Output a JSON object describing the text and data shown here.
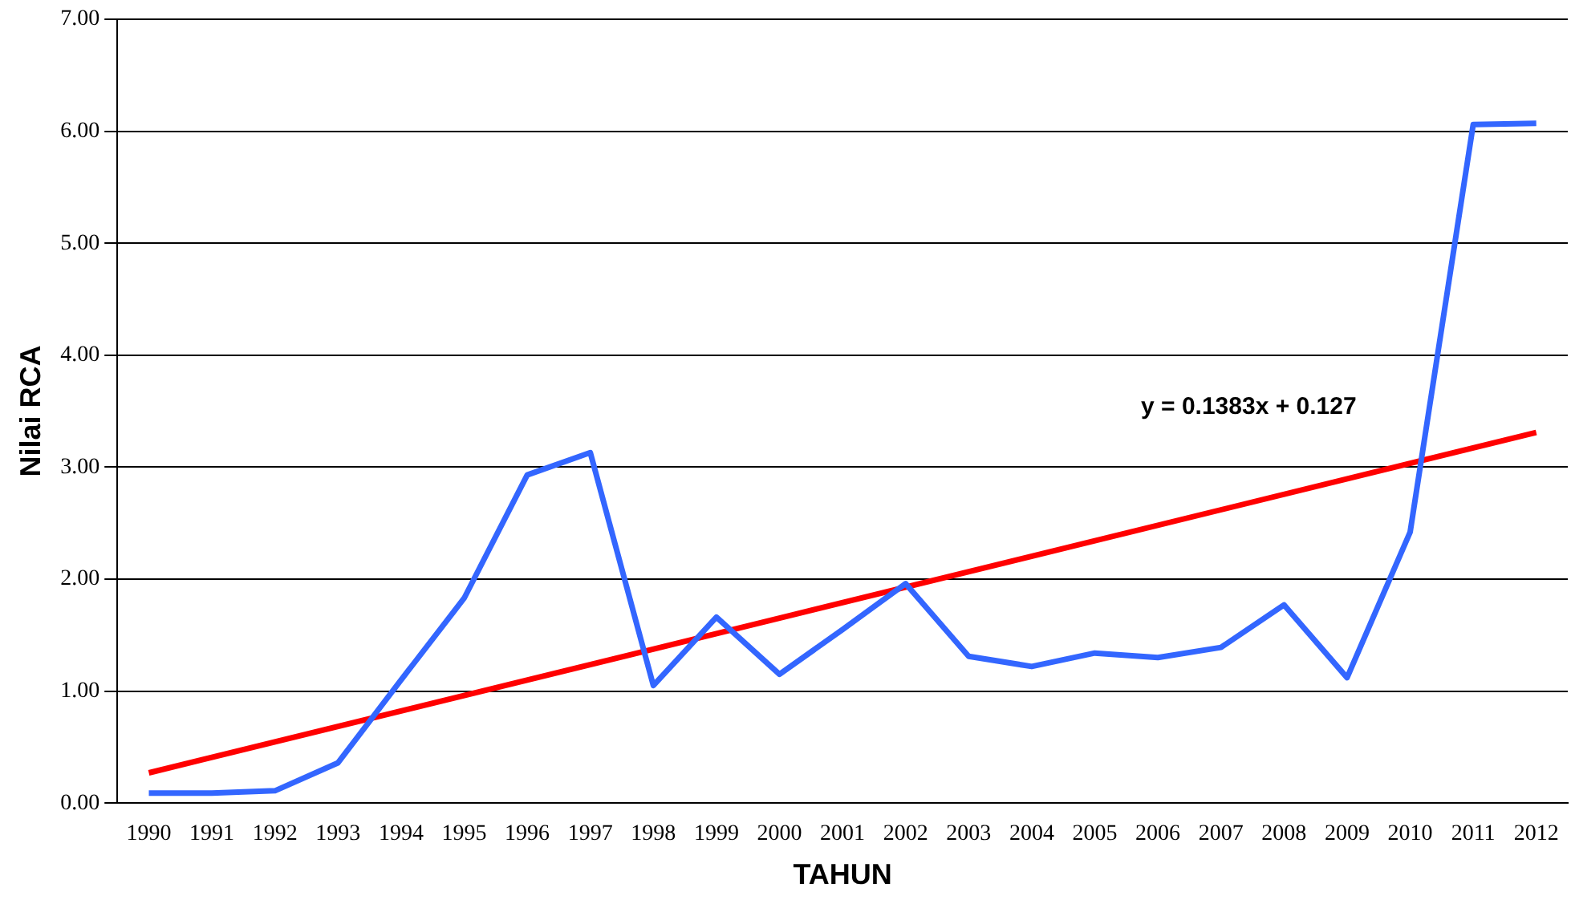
{
  "chart_data": {
    "type": "line",
    "xlabel": "TAHUN",
    "ylabel": "Nilai RCA",
    "categories": [
      "1990",
      "1991",
      "1992",
      "1993",
      "1994",
      "1995",
      "1996",
      "1997",
      "1998",
      "1999",
      "2000",
      "2001",
      "2002",
      "2003",
      "2004",
      "2005",
      "2006",
      "2007",
      "2008",
      "2009",
      "2010",
      "2011",
      "2012"
    ],
    "series": [
      {
        "color": "#3366ff",
        "values": [
          0.09,
          0.09,
          0.11,
          0.36,
          1.1,
          1.83,
          2.93,
          3.13,
          1.05,
          1.66,
          1.15,
          1.55,
          1.96,
          1.31,
          1.22,
          1.34,
          1.3,
          1.39,
          1.77,
          1.12,
          2.42,
          6.06,
          6.07
        ]
      },
      {
        "type": "line",
        "color": "#ff0000",
        "values": [
          0.27,
          null,
          null,
          null,
          null,
          null,
          null,
          null,
          null,
          null,
          null,
          null,
          null,
          null,
          null,
          null,
          null,
          null,
          null,
          null,
          null,
          null,
          3.31
        ]
      }
    ],
    "ylim": [
      0,
      7
    ],
    "yticks": [
      {
        "value": 0,
        "label": "0.00"
      },
      {
        "value": 1,
        "label": "1.00"
      },
      {
        "value": 2,
        "label": "2.00"
      },
      {
        "value": 3,
        "label": "3.00"
      },
      {
        "value": 4,
        "label": "4.00"
      },
      {
        "value": 5,
        "label": "5.00"
      },
      {
        "value": 6,
        "label": "6.00"
      },
      {
        "value": 7,
        "label": "7.00"
      }
    ],
    "grid": "y",
    "legend": false,
    "marker": "none",
    "line_style": "solid",
    "annotations": [
      "y = 0.1383x + 0.127"
    ]
  }
}
